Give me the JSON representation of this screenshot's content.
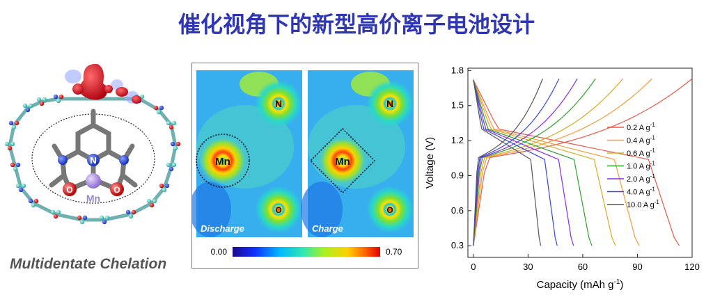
{
  "title": "催化视角下的新型高价离子电池设计",
  "colors": {
    "title": "#2e36b4",
    "chelation": "#555555"
  },
  "molecule_panel": {
    "center_label_n": "N",
    "center_label_metal": "Mn",
    "oxygen_label": "O",
    "caption": "Multidentate Chelation"
  },
  "density_maps": {
    "panels": [
      {
        "label": "Discharge",
        "metal_label": "Mn",
        "n_label": "N",
        "o_label": "O"
      },
      {
        "label": "Charge",
        "metal_label": "Mn",
        "n_label": "N",
        "o_label": "O"
      }
    ],
    "colorbar": {
      "min": "0.00",
      "max": "0.70"
    }
  },
  "chart_data": {
    "type": "line",
    "xlabel": "Capacity (mAh g",
    "xlabel_sup": "-1",
    "xlabel_tail": ")",
    "ylabel": "Voltage (V)",
    "xlim": [
      -3,
      120
    ],
    "ylim": [
      0.2,
      1.82
    ],
    "xticks": [
      "0",
      "30",
      "60",
      "90",
      "120"
    ],
    "yticks": [
      "0.3",
      "0.6",
      "0.9",
      "1.2",
      "1.5",
      "1.8"
    ],
    "legend_position": "right",
    "series": [
      {
        "name": "0.2 A g",
        "unit_sup": "-1",
        "color": "#e8594a",
        "discharge_cap": 113,
        "charge_cap": 120
      },
      {
        "name": "0.4 A g",
        "unit_sup": "-1",
        "color": "#f59a3a",
        "discharge_cap": 91,
        "charge_cap": 98
      },
      {
        "name": "0.6 A g",
        "unit_sup": "-1",
        "color": "#d8aa20",
        "discharge_cap": 78,
        "charge_cap": 82
      },
      {
        "name": "1.0 A g",
        "unit_sup": "-1",
        "color": "#2ca02c",
        "discharge_cap": 65,
        "charge_cap": 67
      },
      {
        "name": "2.0 A g",
        "unit_sup": "-1",
        "color": "#8a2be2",
        "discharge_cap": 55,
        "charge_cap": 57
      },
      {
        "name": "4.0 A g",
        "unit_sup": "-1",
        "color": "#3344dd",
        "discharge_cap": 46,
        "charge_cap": 47
      },
      {
        "name": "10.0 A g",
        "unit_sup": "-1",
        "color": "#555555",
        "discharge_cap": 37,
        "charge_cap": 38
      }
    ]
  }
}
